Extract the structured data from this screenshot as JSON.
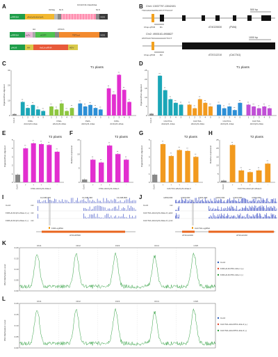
{
  "figure": {
    "panelA": {
      "label": "A",
      "construct1": {
        "left": "pIRRSIA",
        "main": "dAsCpf1/dLbCpf1",
        "end": "NOS",
        "gcn4": "10xGCN4-14aa/22aa",
        "tag": "3xFlag",
        "nls1": "NLS",
        "nls2": "NLS"
      },
      "construct2": {
        "left": "pIRRSIA",
        "scfv": "scFv",
        "gfp": "sfGFP",
        "tet": "TET1cd",
        "end": "NOS",
        "ha": "HA",
        "nls": "2XNLS"
      },
      "construct3": {
        "left": "pAtU6",
        "hh": "HH",
        "crrna": "As/Lb-crRNA",
        "hdv": "HDV"
      }
    },
    "panelB": {
      "label": "B",
      "locus1": {
        "coord": "Chr4: 13037797-13042401",
        "seq": "TGCAAGCGATACATCTTTCCGT",
        "gene": "AT4G25530",
        "alias": "(FWA)",
        "scale": "500 bp",
        "chop": "Chop-qPCR",
        "primer": "R1"
      },
      "locus2": {
        "coord": "Chr2: 4900163-4908827",
        "seq": "ATATCACTACAAAAAAACTCCT",
        "gene": "AT2G12210",
        "alias": "(CACTA1)",
        "scale": "1000 bp",
        "chop": "Chop-qPCR",
        "primer": "R2"
      }
    },
    "panelC": {
      "label": "C",
      "title": "T1 plants",
      "ylabel": "Digested/Non-digested",
      "ticks": [
        "0",
        "10",
        "20",
        "30"
      ],
      "ctrl": "Col-0",
      "groups": [
        {
          "name": "FWA-dAsCpf1-14aa",
          "color": "#1aa6b7",
          "ids": [
            "1",
            "2",
            "3",
            "4",
            "5"
          ]
        },
        {
          "name": "FWA-dAsCpf1-22aa",
          "color": "#8dc63f",
          "ids": [
            "1",
            "2",
            "3",
            "4",
            "5"
          ]
        },
        {
          "name": "FWA-dLbCpf1-14aa",
          "color": "#2c8fd6",
          "ids": [
            "1",
            "2",
            "3",
            "4",
            "5"
          ]
        },
        {
          "name": "FWA-dLbCpf1-22aa",
          "color": "#e22ecf",
          "ids": [
            "1",
            "2",
            "3",
            "4",
            "5"
          ]
        }
      ]
    },
    "panelD": {
      "label": "D",
      "title": "T1 plants",
      "ylabel": "Digested/Non-digested",
      "ticks": [
        "0",
        "5",
        "10",
        "15",
        "20",
        "25"
      ],
      "ctrl": "Col-0",
      "groups": [
        {
          "name": "CACTA1-dAsCpf1-14aa",
          "color": "#1aa6b7",
          "ids": [
            "1",
            "2",
            "3",
            "4",
            "5"
          ]
        },
        {
          "name": "CACTA1-dAsCpf1-22aa",
          "color": "#f29a1e",
          "ids": [
            "1",
            "2",
            "3",
            "4",
            "5"
          ]
        },
        {
          "name": "CACTA1-dLbCpf1-14aa",
          "color": "#2c8fd6",
          "ids": [
            "1",
            "2",
            "3",
            "4",
            "5"
          ]
        },
        {
          "name": "CACTA1-dLbCpf1-22aa",
          "color": "#c04fd6",
          "ids": [
            "1",
            "2",
            "3",
            "4",
            "5"
          ]
        }
      ]
    },
    "panelE": {
      "label": "E",
      "title": "T2 plants",
      "ylabel": "Digested/Non-digested",
      "ticks": [
        "0",
        "1",
        "2",
        "3",
        "4",
        "5"
      ],
      "ctrl": "Col-0",
      "group": "FWA-dLbCpf1-22aa-1",
      "color": "#e22ecf"
    },
    "panelF": {
      "label": "F",
      "title": "T2 plants",
      "ylabel": "Relative expression",
      "ticks": [
        "0",
        "5",
        "10",
        "15"
      ],
      "ctrl": "Col-0",
      "group": "FWA-dLbCpf1-22aa-1",
      "color": "#e22ecf"
    },
    "panelG": {
      "label": "G",
      "title": "T2 plants",
      "ylabel": "Digested/Non-digested",
      "ticks": [
        "0",
        "1",
        "2",
        "3",
        "4",
        "5"
      ],
      "ctrl": "Col-0",
      "group": "CACTA1-dAsCpf1-22aa-3",
      "color": "#f29a1e"
    },
    "panelH": {
      "label": "H",
      "title": "T2 plants",
      "ylabel": "Relative expression",
      "ticks": [
        "0",
        "5",
        "10",
        "15",
        "20",
        "25"
      ],
      "ctrl": "Col-0",
      "group": "CACTA1-dAsCpf1-22aa-3",
      "color": "#f29a1e"
    },
    "panelI": {
      "label": "I",
      "coords": [
        "13,038,000",
        "13,038,490",
        "13,038,800"
      ],
      "tracks": [
        "Col-0",
        "FWA-dLbCpf1-22aa-1 (+)",
        "FWA-dLbCpf1-22aa-1 (-)"
      ],
      "ctx": [
        "mC",
        "mC",
        "mC"
      ],
      "sgrna": "FWA-sgRNA",
      "gene": "AT4G25530"
    },
    "panelJ": {
      "label": "J",
      "coords": [
        "4,899,000",
        "4,900,000",
        "4,901,000",
        "4,902,000",
        "4,903,000",
        "4,904,000"
      ],
      "tracks": [
        "Col-0",
        "CACTA1-dAsCpf1-22aa-3 (+)",
        "CACTA1-dAsCpf1-22aa-3 (-)"
      ],
      "ctx": [
        "mC",
        "mC",
        "mC"
      ],
      "sgrna": "CACTA1-sgRNA",
      "gene1": "AT2G12200",
      "gene2": "AT2G12210"
    },
    "panelK": {
      "label": "K",
      "ylabel": "DNA Methylation Level",
      "chrs": [
        "Chr1",
        "Chr2",
        "Chr3",
        "Chr4",
        "Chr5"
      ],
      "ticks": [
        "0.00",
        "0.05",
        "0.10",
        "0.15",
        "0.20"
      ],
      "legend": [
        {
          "name": "Col-0",
          "color": "#2e5cb8"
        },
        {
          "name": "FWA-dLbCPF1-22a-1 (+)",
          "color": "#e0452b"
        },
        {
          "name": "FWA-dLbCPF1-22a-1 (-)",
          "color": "#2e9e3e"
        }
      ]
    },
    "panelL": {
      "label": "L",
      "ylabel": "DNA Methylation Level",
      "chrs": [
        "Chr1",
        "Chr2",
        "Chr3",
        "Chr4",
        "Chr5"
      ],
      "ticks": [
        "0.00",
        "0.05",
        "0.10",
        "0.15",
        "0.20"
      ],
      "legend": [
        {
          "name": "Col-0",
          "color": "#2e5cb8"
        },
        {
          "name": "CACTA1-dAsCPF1-22a-3 (+)",
          "color": "#e0452b"
        },
        {
          "name": "CACTA1-dAsCPF1-22a-3 (-)",
          "color": "#2e9e3e"
        }
      ]
    }
  },
  "chart_data": [
    {
      "id": "C",
      "type": "bar",
      "title": "T1 plants",
      "ylabel": "Digested/Non-digested",
      "ylim": [
        0,
        30
      ],
      "categories": [
        "Col-0",
        "1",
        "2",
        "3",
        "4",
        "5",
        "1",
        "2",
        "3",
        "4",
        "5",
        "1",
        "2",
        "3",
        "4",
        "5",
        "1",
        "2",
        "3",
        "4",
        "5"
      ],
      "values": [
        1,
        9,
        5,
        7,
        4,
        3,
        6,
        4,
        8,
        3,
        5,
        8,
        6,
        7,
        5,
        4,
        18,
        14,
        27,
        17,
        9
      ]
    },
    {
      "id": "D",
      "type": "bar",
      "title": "T1 plants",
      "ylabel": "Digested/Non-digested",
      "ylim": [
        0,
        25
      ],
      "categories": [
        "Col-0",
        "1",
        "2",
        "3",
        "4",
        "5",
        "1",
        "2",
        "3",
        "4",
        "5",
        "1",
        "2",
        "3",
        "4",
        "5",
        "1",
        "2",
        "3",
        "4",
        "5"
      ],
      "values": [
        1,
        22,
        14,
        9,
        7,
        6,
        6,
        4,
        9,
        7,
        5,
        6,
        4,
        5,
        3,
        7,
        6,
        5,
        4,
        5,
        4
      ]
    },
    {
      "id": "E",
      "type": "bar",
      "title": "T2 plants",
      "ylabel": "Digested/Non-digested",
      "ylim": [
        0,
        5
      ],
      "categories": [
        "Col-0",
        "+",
        "+",
        "+",
        "-",
        "-"
      ],
      "values": [
        0.9,
        4.0,
        4.6,
        4.5,
        4.4,
        3.6
      ]
    },
    {
      "id": "F",
      "type": "bar",
      "title": "T2 plants",
      "ylabel": "Relative expression",
      "ylim": [
        0,
        15
      ],
      "categories": [
        "Col-0",
        "+",
        "+",
        "+",
        "-",
        "-"
      ],
      "values": [
        1,
        8,
        7,
        13,
        10,
        8
      ]
    },
    {
      "id": "G",
      "type": "bar",
      "title": "T2 plants",
      "ylabel": "Digested/Non-digested",
      "ylim": [
        0,
        5
      ],
      "categories": [
        "Col-0",
        "+",
        "+",
        "+",
        "-",
        "-"
      ],
      "values": [
        0.9,
        4.5,
        3.1,
        3.8,
        3.7,
        3.0
      ]
    },
    {
      "id": "H",
      "type": "bar",
      "title": "T2 plants",
      "ylabel": "Relative expression",
      "ylim": [
        0,
        25
      ],
      "categories": [
        "Col-0",
        "+",
        "+",
        "+",
        "-",
        "-"
      ],
      "values": [
        1,
        22,
        7,
        6,
        7,
        11
      ]
    },
    {
      "id": "K",
      "type": "line",
      "ylabel": "DNA Methylation Level",
      "ylim": [
        0,
        0.2
      ],
      "x": [
        "Chr1",
        "Chr2",
        "Chr3",
        "Chr4",
        "Chr5"
      ],
      "series": [
        {
          "name": "Col-0",
          "values": [
            0.17,
            0.16,
            0.17,
            0.15,
            0.17
          ]
        },
        {
          "name": "FWA-dLbCPF1-22a-1 (+)",
          "values": [
            0.17,
            0.16,
            0.17,
            0.15,
            0.17
          ]
        },
        {
          "name": "FWA-dLbCPF1-22a-1 (-)",
          "values": [
            0.17,
            0.16,
            0.17,
            0.15,
            0.17
          ]
        }
      ]
    },
    {
      "id": "L",
      "type": "line",
      "ylabel": "DNA Methylation Level",
      "ylim": [
        0,
        0.2
      ],
      "x": [
        "Chr1",
        "Chr2",
        "Chr3",
        "Chr4",
        "Chr5"
      ],
      "series": [
        {
          "name": "Col-0",
          "values": [
            0.17,
            0.16,
            0.17,
            0.15,
            0.17
          ]
        },
        {
          "name": "CACTA1-dAsCPF1-22a-3 (+)",
          "values": [
            0.17,
            0.16,
            0.17,
            0.15,
            0.17
          ]
        },
        {
          "name": "CACTA1-dAsCPF1-22a-3 (-)",
          "values": [
            0.17,
            0.16,
            0.17,
            0.15,
            0.17
          ]
        }
      ]
    }
  ]
}
